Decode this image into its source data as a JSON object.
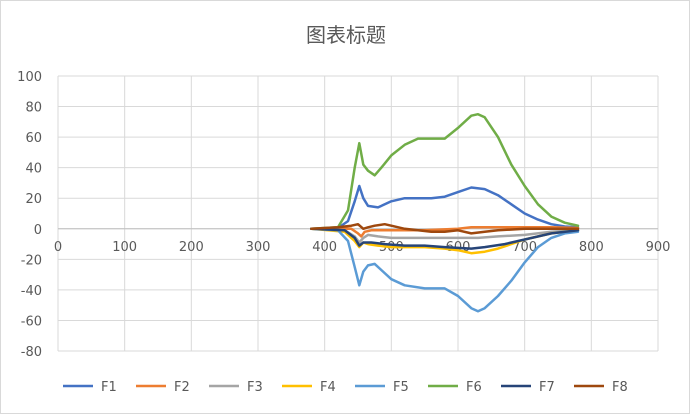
{
  "chart_data": {
    "type": "line",
    "title": "图表标题",
    "xlim": [
      0,
      900
    ],
    "ylim": [
      -80,
      100
    ],
    "x_ticks": [
      0,
      100,
      200,
      300,
      400,
      500,
      600,
      700,
      800,
      900
    ],
    "y_ticks": [
      100,
      80,
      60,
      40,
      20,
      0,
      -20,
      -40,
      -60,
      -80
    ],
    "grid": "vertical-and-horizontal",
    "legend_position": "bottom",
    "series": [
      {
        "name": "F1",
        "color": "#4472C4",
        "points": [
          [
            380,
            0
          ],
          [
            420,
            0.5
          ],
          [
            435,
            5
          ],
          [
            445,
            18
          ],
          [
            452,
            28
          ],
          [
            458,
            20
          ],
          [
            465,
            15
          ],
          [
            480,
            14
          ],
          [
            500,
            18
          ],
          [
            520,
            20
          ],
          [
            560,
            20
          ],
          [
            580,
            21
          ],
          [
            600,
            24
          ],
          [
            620,
            27
          ],
          [
            640,
            26
          ],
          [
            660,
            22
          ],
          [
            680,
            16
          ],
          [
            700,
            10
          ],
          [
            720,
            6
          ],
          [
            740,
            3
          ],
          [
            760,
            1.5
          ],
          [
            780,
            1
          ]
        ]
      },
      {
        "name": "F2",
        "color": "#ED7D31",
        "points": [
          [
            380,
            0
          ],
          [
            440,
            0
          ],
          [
            450,
            -3
          ],
          [
            455,
            -5
          ],
          [
            460,
            -2
          ],
          [
            470,
            -1
          ],
          [
            500,
            -1
          ],
          [
            550,
            -1
          ],
          [
            600,
            0
          ],
          [
            620,
            1
          ],
          [
            650,
            1
          ],
          [
            700,
            1
          ],
          [
            740,
            1
          ],
          [
            780,
            0.5
          ]
        ]
      },
      {
        "name": "F3",
        "color": "#A5A5A5",
        "points": [
          [
            380,
            0
          ],
          [
            430,
            -1
          ],
          [
            445,
            -5
          ],
          [
            452,
            -9
          ],
          [
            458,
            -6
          ],
          [
            465,
            -4
          ],
          [
            480,
            -5
          ],
          [
            500,
            -6
          ],
          [
            550,
            -6
          ],
          [
            600,
            -6
          ],
          [
            630,
            -6
          ],
          [
            660,
            -5
          ],
          [
            700,
            -4
          ],
          [
            740,
            -2
          ],
          [
            780,
            -1
          ]
        ]
      },
      {
        "name": "F4",
        "color": "#FFC000",
        "points": [
          [
            380,
            0
          ],
          [
            430,
            -2
          ],
          [
            445,
            -8
          ],
          [
            452,
            -12
          ],
          [
            458,
            -9
          ],
          [
            465,
            -10
          ],
          [
            480,
            -11
          ],
          [
            500,
            -12
          ],
          [
            550,
            -12
          ],
          [
            580,
            -13
          ],
          [
            600,
            -14
          ],
          [
            620,
            -16
          ],
          [
            640,
            -15
          ],
          [
            660,
            -13
          ],
          [
            680,
            -10
          ],
          [
            700,
            -7
          ],
          [
            740,
            -3
          ],
          [
            780,
            -1
          ]
        ]
      },
      {
        "name": "F5",
        "color": "#5B9BD5",
        "points": [
          [
            380,
            0
          ],
          [
            420,
            -1
          ],
          [
            435,
            -8
          ],
          [
            445,
            -25
          ],
          [
            452,
            -37
          ],
          [
            458,
            -28
          ],
          [
            465,
            -24
          ],
          [
            475,
            -23
          ],
          [
            485,
            -27
          ],
          [
            500,
            -33
          ],
          [
            520,
            -37
          ],
          [
            550,
            -39
          ],
          [
            580,
            -39
          ],
          [
            600,
            -44
          ],
          [
            620,
            -52
          ],
          [
            630,
            -54
          ],
          [
            640,
            -52
          ],
          [
            660,
            -44
          ],
          [
            680,
            -34
          ],
          [
            700,
            -22
          ],
          [
            720,
            -12
          ],
          [
            740,
            -6
          ],
          [
            760,
            -3
          ],
          [
            780,
            -2
          ]
        ]
      },
      {
        "name": "F6",
        "color": "#70AD47",
        "points": [
          [
            380,
            0
          ],
          [
            420,
            1
          ],
          [
            435,
            12
          ],
          [
            445,
            40
          ],
          [
            452,
            56
          ],
          [
            458,
            42
          ],
          [
            465,
            38
          ],
          [
            475,
            35
          ],
          [
            485,
            40
          ],
          [
            500,
            48
          ],
          [
            520,
            55
          ],
          [
            540,
            59
          ],
          [
            560,
            59
          ],
          [
            580,
            59
          ],
          [
            600,
            66
          ],
          [
            620,
            74
          ],
          [
            630,
            75
          ],
          [
            640,
            73
          ],
          [
            660,
            60
          ],
          [
            680,
            42
          ],
          [
            700,
            28
          ],
          [
            720,
            16
          ],
          [
            740,
            8
          ],
          [
            760,
            4
          ],
          [
            780,
            2
          ]
        ]
      },
      {
        "name": "F7",
        "color": "#264478",
        "points": [
          [
            380,
            0
          ],
          [
            430,
            -1
          ],
          [
            445,
            -6
          ],
          [
            452,
            -11
          ],
          [
            458,
            -9
          ],
          [
            470,
            -9
          ],
          [
            490,
            -10
          ],
          [
            520,
            -11
          ],
          [
            550,
            -11
          ],
          [
            580,
            -12
          ],
          [
            620,
            -13
          ],
          [
            640,
            -12
          ],
          [
            670,
            -10
          ],
          [
            700,
            -7
          ],
          [
            740,
            -3
          ],
          [
            780,
            -1
          ]
        ]
      },
      {
        "name": "F8",
        "color": "#9E480E",
        "points": [
          [
            380,
            0
          ],
          [
            420,
            1
          ],
          [
            440,
            2
          ],
          [
            450,
            3
          ],
          [
            458,
            0
          ],
          [
            465,
            1
          ],
          [
            475,
            2
          ],
          [
            490,
            3
          ],
          [
            500,
            2
          ],
          [
            520,
            0
          ],
          [
            540,
            -1
          ],
          [
            560,
            -2
          ],
          [
            580,
            -2
          ],
          [
            600,
            -1
          ],
          [
            620,
            -3
          ],
          [
            640,
            -2
          ],
          [
            660,
            -1
          ],
          [
            700,
            0
          ],
          [
            740,
            0
          ],
          [
            780,
            0
          ]
        ]
      }
    ]
  }
}
